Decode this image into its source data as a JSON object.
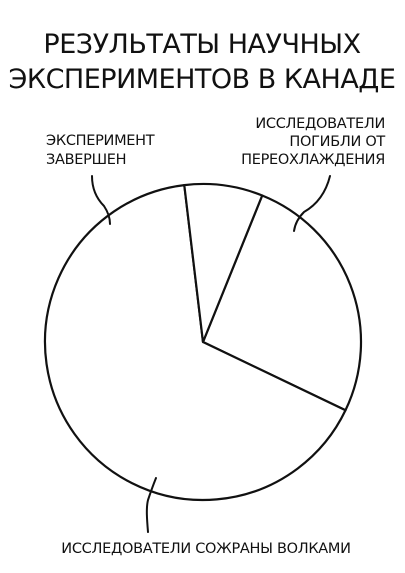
{
  "chart_data": {
    "type": "pie",
    "title": [
      "РЕЗУЛЬТАТЫ НАУЧНЫХ",
      "ЭКСПЕРИМЕНТОВ В КАНАДЕ"
    ],
    "slices": [
      {
        "label": [
          "ИССЛЕДОВАТЕЛИ",
          "ПОГИБЛИ ОТ",
          "ПЕРЕОХЛАЖДЕНИЯ"
        ],
        "value": 26
      },
      {
        "label": [
          "ИССЛЕДОВАТЕЛИ СОЖРАНЫ ВОЛКАМИ"
        ],
        "value": 66
      },
      {
        "label": [
          "ЭКСПЕРИМЕНТ",
          "ЗАВЕРШЕН"
        ],
        "value": 8
      }
    ],
    "colors": {
      "ink": "#111111",
      "fill": "#ffffff"
    }
  }
}
